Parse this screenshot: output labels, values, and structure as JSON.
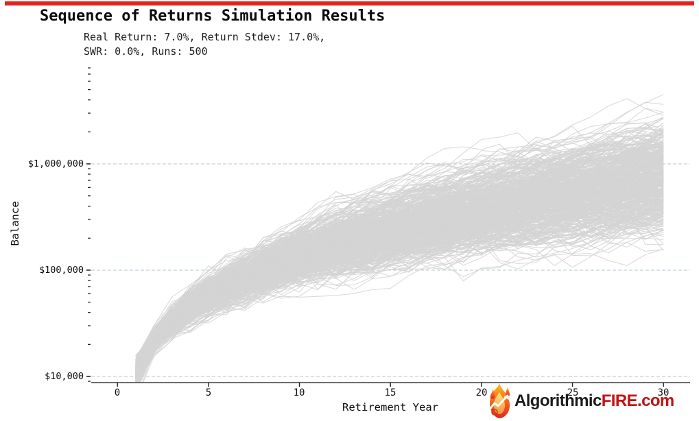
{
  "header": {
    "title": "Sequence of Returns Simulation Results",
    "subtitle_line1": "Real Return: 7.0%, Return Stdev: 17.0%,",
    "subtitle_line2": "SWR: 0.0%, Runs: 500",
    "accent_bar_color": "#e8201c"
  },
  "chart_data": {
    "type": "line",
    "title": "Sequence of Returns Simulation Results",
    "xlabel": "Retirement Year",
    "ylabel": "Balance",
    "x_scale": "linear",
    "y_scale": "log10",
    "x_ticks": [
      0,
      5,
      10,
      15,
      20,
      25,
      30
    ],
    "y_tick_labels": [
      "$10,000",
      "$100,000",
      "$1,000,000"
    ],
    "y_tick_values": [
      10000,
      100000,
      1000000
    ],
    "x_range_years": [
      0,
      30
    ],
    "y_range_dollars": [
      8700,
      8500000
    ],
    "grid": {
      "horizontal_dashed_at_major_ticks": true,
      "color": "#a9bfcc"
    },
    "legend": "none",
    "series_style": {
      "color": "#d3d3d3",
      "runs_drawn": 500
    },
    "simulation_params": {
      "real_return_pct": 7.0,
      "return_stdev_pct": 17.0,
      "swr_pct": 0.0,
      "runs": 500,
      "start_balance_dollars": 10000,
      "first_year_plotted": 1,
      "last_year_plotted": 30
    },
    "envelope_estimate_dollars": {
      "years": [
        1,
        5,
        10,
        15,
        20,
        25,
        30
      ],
      "p10": [
        8500,
        42000,
        90000,
        150000,
        230000,
        330000,
        450000
      ],
      "median": [
        10000,
        57000,
        138000,
        251000,
        410000,
        632000,
        945000
      ],
      "p90": [
        12500,
        80000,
        215000,
        430000,
        760000,
        1300000,
        2100000
      ],
      "min_observed": [
        6500,
        30000,
        55000,
        90000,
        140000,
        200000,
        320000
      ],
      "max_observed": [
        14000,
        160000,
        500000,
        1200000,
        2500000,
        4200000,
        6300000
      ]
    },
    "render_model": {
      "annual_contribution_dollars": 10000,
      "drift": 0.07,
      "sigma": 0.17,
      "seed": 11
    }
  },
  "branding": {
    "name_part1": "Algorithmic",
    "name_part2": "FIRE",
    "name_part3": ".com",
    "part1_color": "#1c1c1c",
    "part23_color": "#c41212",
    "icon": "flame-chart-icon"
  }
}
